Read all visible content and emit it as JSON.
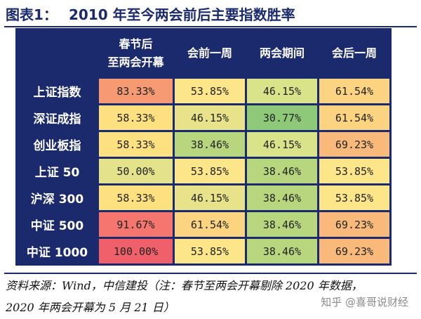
{
  "title": {
    "prefix": "图表1：",
    "text": "2010 年至今两会前后主要指数胜率"
  },
  "table": {
    "columns": [
      {
        "line1": "春节后",
        "line2": "至两会开幕"
      },
      {
        "line1": "会前一周",
        "line2": ""
      },
      {
        "line1": "两会期间",
        "line2": ""
      },
      {
        "line1": "会后一周",
        "line2": ""
      }
    ],
    "rows": [
      {
        "label": "上证指数",
        "values": [
          "83.33%",
          "53.85%",
          "46.15%",
          "61.54%"
        ],
        "colors": [
          "#f59a73",
          "#fde68a",
          "#d8e38a",
          "#fcd381"
        ]
      },
      {
        "label": "深证成指",
        "values": [
          "58.33%",
          "46.15%",
          "30.77%",
          "61.54%"
        ],
        "colors": [
          "#fde07f",
          "#e8e38a",
          "#8ec97a",
          "#fcd381"
        ]
      },
      {
        "label": "创业板指",
        "values": [
          "58.33%",
          "38.46%",
          "46.15%",
          "69.23%"
        ],
        "colors": [
          "#fde07f",
          "#b7d67d",
          "#d8e38a",
          "#f9b97a"
        ]
      },
      {
        "label": "上证 50",
        "values": [
          "50.00%",
          "53.85%",
          "38.46%",
          "53.85%"
        ],
        "colors": [
          "#e4e28a",
          "#fde68a",
          "#b7d67d",
          "#fde68a"
        ]
      },
      {
        "label": "沪深 300",
        "values": [
          "58.33%",
          "46.15%",
          "38.46%",
          "53.85%"
        ],
        "colors": [
          "#fde07f",
          "#e8e38a",
          "#b7d67d",
          "#fde68a"
        ]
      },
      {
        "label": "中证 500",
        "values": [
          "91.67%",
          "61.54%",
          "38.46%",
          "69.23%"
        ],
        "colors": [
          "#f4766e",
          "#fcd381",
          "#b7d67d",
          "#f9b97a"
        ]
      },
      {
        "label": "中证 1000",
        "values": [
          "100.00%",
          "53.85%",
          "38.46%",
          "69.23%"
        ],
        "colors": [
          "#f0606a",
          "#fde68a",
          "#b7d67d",
          "#f9b97a"
        ]
      }
    ]
  },
  "footnote": {
    "line1": "资料来源：Wind，中信建投（注：春节至两会开幕剔除 2020 年数据，",
    "line2": "2020 年两会开幕为 5 月 21 日）"
  },
  "watermark": "知乎 @喜哥说财经",
  "colors": {
    "header_bg": "#1a2a6c",
    "title": "#1a2a6c"
  }
}
